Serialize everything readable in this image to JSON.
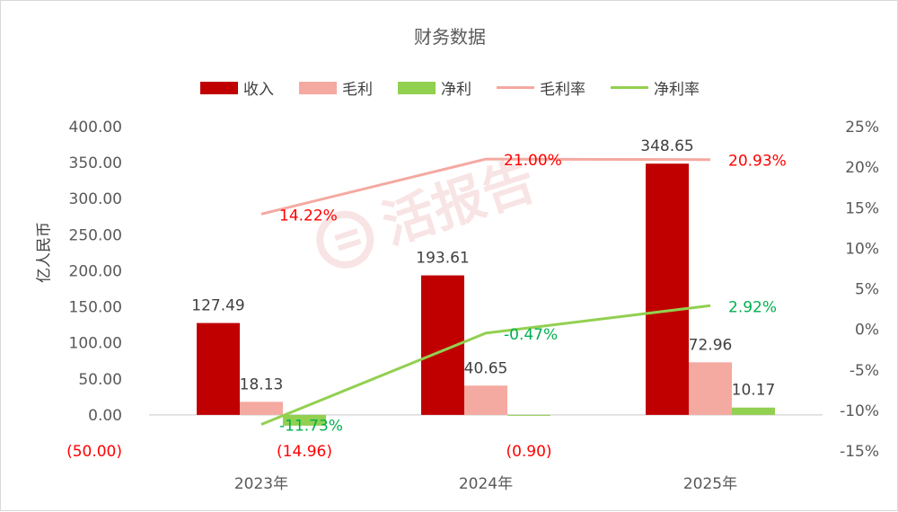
{
  "chart_data": {
    "type": "bar+line",
    "title": "财务数据",
    "ylabel": "亿人民币",
    "categories": [
      "2023年",
      "2024年",
      "2025年"
    ],
    "left_axis": {
      "ylim": [
        -50,
        400
      ],
      "ticks": [
        "(50.00)",
        "0.00",
        "50.00",
        "100.00",
        "150.00",
        "200.00",
        "250.00",
        "300.00",
        "350.00",
        "400.00"
      ]
    },
    "right_axis": {
      "ylim": [
        -15,
        25
      ],
      "ticks": [
        "-15%",
        "-10%",
        "-5%",
        "0%",
        "5%",
        "10%",
        "15%",
        "20%",
        "25%"
      ]
    },
    "bar_series": [
      {
        "name": "收入",
        "color": "#c00000",
        "values": [
          127.49,
          193.61,
          348.65
        ],
        "labels": [
          "127.49",
          "193.61",
          "348.65"
        ]
      },
      {
        "name": "毛利",
        "color": "#f4a9a1",
        "values": [
          18.13,
          40.65,
          72.96
        ],
        "labels": [
          "18.13",
          "40.65",
          "72.96"
        ]
      },
      {
        "name": "净利",
        "color": "#92d050",
        "values": [
          -14.96,
          -0.9,
          10.17
        ],
        "labels": [
          "(14.96)",
          "(0.90)",
          "10.17"
        ]
      }
    ],
    "line_series": [
      {
        "name": "毛利率",
        "color": "#f4a9a1",
        "label_color": "#ff0000",
        "values": [
          14.22,
          21.0,
          20.93
        ],
        "labels": [
          "14.22%",
          "21.00%",
          "20.93%"
        ]
      },
      {
        "name": "净利率",
        "color": "#92d050",
        "label_color": "#00b050",
        "values": [
          -11.73,
          -0.47,
          2.92
        ],
        "labels": [
          "-11.73%",
          "-0.47%",
          "2.92%"
        ]
      }
    ],
    "legend_position": "top",
    "grid": false
  },
  "watermark": "活报告"
}
